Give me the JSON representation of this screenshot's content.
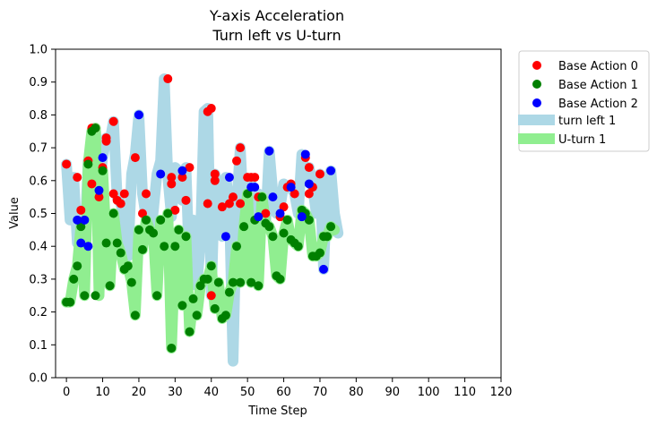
{
  "chart_data": {
    "type": "scatter",
    "title_line1": "Y-axis Acceleration",
    "title_line2": "Turn left vs U-turn",
    "xlabel": "Time Step",
    "ylabel": "Value",
    "xlim": [
      -3,
      120
    ],
    "ylim": [
      0.0,
      1.0
    ],
    "xticks": [
      0,
      10,
      20,
      30,
      40,
      50,
      60,
      70,
      80,
      90,
      100,
      110,
      120
    ],
    "yticks": [
      0.0,
      0.1,
      0.2,
      0.3,
      0.4,
      0.5,
      0.6,
      0.7,
      0.8,
      0.9,
      1.0
    ],
    "grid": false,
    "legend_position": "outside-top-right",
    "colors": {
      "base_action_0": "#ff0000",
      "base_action_1": "#008000",
      "base_action_2": "#0000ff",
      "turn_left_1": "#add8e6",
      "u_turn_1": "#90ee90"
    },
    "bands": [
      {
        "name": "turn left 1",
        "color": "#add8e6",
        "x": [
          0,
          1,
          2,
          3,
          4,
          5,
          6,
          7,
          8,
          9,
          10,
          11,
          12,
          13,
          14,
          15,
          16,
          17,
          18,
          19,
          20,
          21,
          22,
          23,
          24,
          25,
          26,
          27,
          28,
          29,
          30,
          31,
          32,
          33,
          34,
          35,
          36,
          37,
          38,
          39,
          40,
          41,
          42,
          43,
          44,
          45,
          46,
          47,
          48,
          49,
          50,
          51,
          52,
          53,
          54,
          55,
          56,
          57,
          58,
          59,
          60,
          61,
          62,
          63,
          64,
          65,
          66,
          67,
          68,
          69,
          70,
          71,
          72,
          73,
          74,
          75
        ],
        "y": [
          0.65,
          0.48,
          0.61,
          0.41,
          0.51,
          0.4,
          0.66,
          0.58,
          0.76,
          0.57,
          0.67,
          0.73,
          0.72,
          0.78,
          0.55,
          0.53,
          0.49,
          0.37,
          0.62,
          0.68,
          0.8,
          0.56,
          0.49,
          0.42,
          0.51,
          0.62,
          0.66,
          0.91,
          0.61,
          0.49,
          0.64,
          0.63,
          0.54,
          0.64,
          0.32,
          0.48,
          0.28,
          0.41,
          0.81,
          0.82,
          0.25,
          0.62,
          0.55,
          0.43,
          0.61,
          0.53,
          0.05,
          0.52,
          0.7,
          0.48,
          0.58,
          0.59,
          0.49,
          0.56,
          0.49,
          0.47,
          0.69,
          0.56,
          0.5,
          0.52,
          0.59,
          0.58,
          0.58,
          0.56,
          0.5,
          0.68,
          0.6,
          0.64,
          0.58,
          0.5,
          0.62,
          0.33,
          0.6,
          0.63,
          0.5,
          0.44
        ]
      },
      {
        "name": "U-turn 1",
        "color": "#90ee90",
        "x": [
          0,
          1,
          2,
          3,
          4,
          5,
          6,
          7,
          8,
          9,
          10,
          11,
          12,
          13,
          14,
          15,
          16,
          17,
          18,
          19,
          20,
          21,
          22,
          23,
          24,
          25,
          26,
          27,
          28,
          29,
          30,
          31,
          32,
          33,
          34,
          35,
          36,
          37,
          38,
          39,
          40,
          41,
          42,
          43,
          44,
          45,
          46,
          47,
          48,
          49,
          50,
          51,
          52,
          53,
          54,
          55,
          56,
          57,
          58,
          59,
          60,
          61,
          62,
          63,
          64,
          65,
          66,
          67,
          68,
          69,
          70,
          71,
          72,
          73,
          74
        ],
        "y": [
          0.23,
          0.23,
          0.3,
          0.34,
          0.46,
          0.25,
          0.65,
          0.75,
          0.76,
          0.25,
          0.63,
          0.41,
          0.28,
          0.5,
          0.41,
          0.38,
          0.33,
          0.34,
          0.29,
          0.19,
          0.45,
          0.39,
          0.48,
          0.45,
          0.44,
          0.25,
          0.48,
          0.4,
          0.5,
          0.09,
          0.4,
          0.45,
          0.22,
          0.43,
          0.14,
          0.24,
          0.19,
          0.28,
          0.3,
          0.3,
          0.34,
          0.21,
          0.29,
          0.18,
          0.19,
          0.26,
          0.29,
          0.4,
          0.29,
          0.46,
          0.56,
          0.29,
          0.48,
          0.28,
          0.55,
          0.47,
          0.46,
          0.43,
          0.31,
          0.3,
          0.44,
          0.48,
          0.42,
          0.41,
          0.4,
          0.51,
          0.5,
          0.48,
          0.37,
          0.37,
          0.38,
          0.43,
          0.43,
          0.46,
          0.45
        ]
      }
    ],
    "series": [
      {
        "name": "Base Action 0",
        "color": "#ff0000",
        "points": [
          [
            0,
            0.65
          ],
          [
            3,
            0.61
          ],
          [
            4,
            0.51
          ],
          [
            6,
            0.66
          ],
          [
            7,
            0.59
          ],
          [
            7,
            0.76
          ],
          [
            8,
            0.76
          ],
          [
            9,
            0.55
          ],
          [
            10,
            0.64
          ],
          [
            11,
            0.72
          ],
          [
            11,
            0.73
          ],
          [
            13,
            0.56
          ],
          [
            13,
            0.78
          ],
          [
            14,
            0.54
          ],
          [
            15,
            0.53
          ],
          [
            16,
            0.56
          ],
          [
            19,
            0.67
          ],
          [
            21,
            0.5
          ],
          [
            22,
            0.56
          ],
          [
            28,
            0.91
          ],
          [
            29,
            0.59
          ],
          [
            29,
            0.61
          ],
          [
            30,
            0.51
          ],
          [
            32,
            0.61
          ],
          [
            33,
            0.54
          ],
          [
            34,
            0.64
          ],
          [
            39,
            0.53
          ],
          [
            39,
            0.81
          ],
          [
            40,
            0.82
          ],
          [
            40,
            0.25
          ],
          [
            41,
            0.62
          ],
          [
            41,
            0.6
          ],
          [
            43,
            0.52
          ],
          [
            45,
            0.53
          ],
          [
            46,
            0.55
          ],
          [
            47,
            0.66
          ],
          [
            48,
            0.7
          ],
          [
            48,
            0.53
          ],
          [
            50,
            0.61
          ],
          [
            51,
            0.61
          ],
          [
            52,
            0.61
          ],
          [
            53,
            0.55
          ],
          [
            55,
            0.5
          ],
          [
            59,
            0.49
          ],
          [
            60,
            0.52
          ],
          [
            61,
            0.58
          ],
          [
            62,
            0.59
          ],
          [
            63,
            0.56
          ],
          [
            66,
            0.67
          ],
          [
            67,
            0.56
          ],
          [
            67,
            0.64
          ],
          [
            68,
            0.58
          ],
          [
            70,
            0.62
          ]
        ]
      },
      {
        "name": "Base Action 1",
        "color": "#008000",
        "points": [
          [
            0,
            0.23
          ],
          [
            1,
            0.23
          ],
          [
            2,
            0.3
          ],
          [
            3,
            0.34
          ],
          [
            4,
            0.46
          ],
          [
            5,
            0.25
          ],
          [
            6,
            0.65
          ],
          [
            7,
            0.75
          ],
          [
            8,
            0.76
          ],
          [
            8,
            0.25
          ],
          [
            10,
            0.63
          ],
          [
            11,
            0.41
          ],
          [
            12,
            0.28
          ],
          [
            13,
            0.5
          ],
          [
            14,
            0.41
          ],
          [
            15,
            0.38
          ],
          [
            16,
            0.33
          ],
          [
            17,
            0.34
          ],
          [
            18,
            0.29
          ],
          [
            19,
            0.19
          ],
          [
            20,
            0.45
          ],
          [
            21,
            0.39
          ],
          [
            22,
            0.48
          ],
          [
            23,
            0.45
          ],
          [
            24,
            0.44
          ],
          [
            25,
            0.25
          ],
          [
            26,
            0.48
          ],
          [
            27,
            0.4
          ],
          [
            28,
            0.5
          ],
          [
            29,
            0.09
          ],
          [
            30,
            0.4
          ],
          [
            31,
            0.45
          ],
          [
            32,
            0.22
          ],
          [
            33,
            0.43
          ],
          [
            34,
            0.14
          ],
          [
            35,
            0.24
          ],
          [
            36,
            0.19
          ],
          [
            37,
            0.28
          ],
          [
            38,
            0.3
          ],
          [
            39,
            0.3
          ],
          [
            40,
            0.34
          ],
          [
            41,
            0.21
          ],
          [
            42,
            0.29
          ],
          [
            43,
            0.18
          ],
          [
            44,
            0.19
          ],
          [
            45,
            0.26
          ],
          [
            46,
            0.29
          ],
          [
            47,
            0.4
          ],
          [
            48,
            0.29
          ],
          [
            49,
            0.46
          ],
          [
            50,
            0.56
          ],
          [
            51,
            0.29
          ],
          [
            52,
            0.48
          ],
          [
            53,
            0.28
          ],
          [
            54,
            0.55
          ],
          [
            55,
            0.47
          ],
          [
            56,
            0.46
          ],
          [
            57,
            0.43
          ],
          [
            58,
            0.31
          ],
          [
            59,
            0.3
          ],
          [
            60,
            0.44
          ],
          [
            61,
            0.48
          ],
          [
            62,
            0.42
          ],
          [
            63,
            0.41
          ],
          [
            64,
            0.4
          ],
          [
            65,
            0.51
          ],
          [
            66,
            0.5
          ],
          [
            67,
            0.48
          ],
          [
            68,
            0.37
          ],
          [
            69,
            0.37
          ],
          [
            70,
            0.38
          ],
          [
            71,
            0.43
          ],
          [
            72,
            0.43
          ],
          [
            73,
            0.46
          ]
        ]
      },
      {
        "name": "Base Action 2",
        "color": "#0000ff",
        "points": [
          [
            3,
            0.48
          ],
          [
            4,
            0.41
          ],
          [
            5,
            0.48
          ],
          [
            6,
            0.4
          ],
          [
            9,
            0.57
          ],
          [
            10,
            0.67
          ],
          [
            20,
            0.8
          ],
          [
            26,
            0.62
          ],
          [
            32,
            0.63
          ],
          [
            44,
            0.43
          ],
          [
            45,
            0.61
          ],
          [
            51,
            0.58
          ],
          [
            52,
            0.58
          ],
          [
            53,
            0.49
          ],
          [
            56,
            0.69
          ],
          [
            57,
            0.55
          ],
          [
            59,
            0.5
          ],
          [
            62,
            0.58
          ],
          [
            65,
            0.49
          ],
          [
            66,
            0.68
          ],
          [
            67,
            0.59
          ],
          [
            71,
            0.33
          ],
          [
            73,
            0.63
          ]
        ]
      }
    ]
  }
}
